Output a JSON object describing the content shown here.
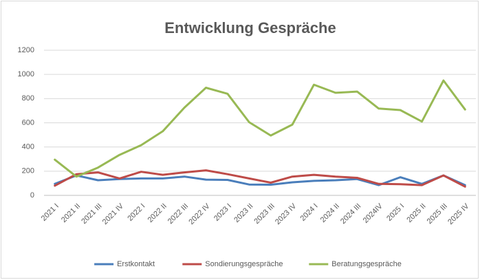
{
  "chart_data": {
    "type": "line",
    "title": "Entwicklung Gespräche",
    "categories": [
      "2021 I",
      "2021 II",
      "2021 III",
      "2021 IV",
      "2022 I",
      "2022 II",
      "2022 III",
      "2022 IV",
      "2023 I",
      "2023 II",
      "2023 III",
      "2023 IV",
      "2024 I",
      "2024 II",
      "2024 III",
      "2024IV",
      "2025 I",
      "2025 II",
      "2025 III",
      "2025 IV"
    ],
    "series": [
      {
        "name": "Erstkontakt",
        "color": "#4a7ebb",
        "values": [
          95,
          165,
          125,
          135,
          140,
          140,
          155,
          130,
          128,
          90,
          88,
          108,
          120,
          125,
          135,
          85,
          150,
          95,
          165,
          85
        ]
      },
      {
        "name": "Sondierungsgespräche",
        "color": "#be4b48",
        "values": [
          80,
          175,
          190,
          140,
          195,
          170,
          190,
          207,
          175,
          140,
          105,
          155,
          170,
          155,
          145,
          95,
          92,
          85,
          165,
          72
        ]
      },
      {
        "name": "Beratungsgespräche",
        "color": "#98b954",
        "values": [
          295,
          155,
          230,
          335,
          415,
          530,
          725,
          890,
          840,
          605,
          495,
          585,
          915,
          848,
          858,
          718,
          705,
          610,
          950,
          710
        ]
      }
    ],
    "ylim": [
      0,
      1200
    ],
    "yticks": [
      0,
      200,
      400,
      600,
      800,
      1000,
      1200
    ],
    "grid": true,
    "legend": "bottom"
  }
}
